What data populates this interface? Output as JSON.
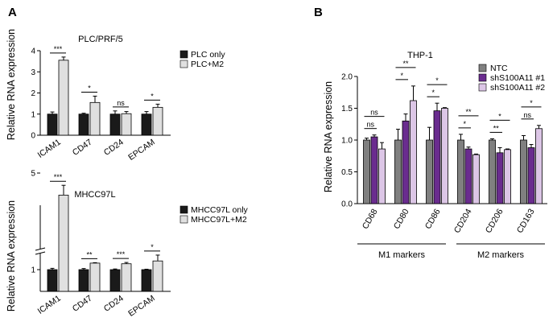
{
  "panels": [
    {
      "letter": "A",
      "title": "PLC/PRF/5",
      "ylabel": "Relative RNA expression",
      "categories": [
        "ICAM1",
        "CD47",
        "CD24",
        "EPCAM"
      ],
      "ylim": [
        0,
        4
      ],
      "yticks": [
        0,
        1,
        2,
        3,
        4
      ],
      "legend": [
        "PLC only",
        "PLC+M2"
      ],
      "colors": [
        "#1a1a1a",
        "#e0e0e0"
      ],
      "significance": [
        "***",
        "*",
        "ns",
        "*"
      ]
    },
    {
      "title": "MHCC97L",
      "ylabel": "Relative RNA expression",
      "categories": [
        "ICAM1",
        "CD47",
        "CD24",
        "EPCAM"
      ],
      "ylim": [
        0,
        5
      ],
      "yticks": [
        1,
        5
      ],
      "axis_break": true,
      "legend": [
        "MHCC97L only",
        "MHCC97L+M2"
      ],
      "colors": [
        "#1a1a1a",
        "#e0e0e0"
      ],
      "significance": [
        "***",
        "**",
        "***",
        "*"
      ]
    },
    {
      "letter": "B",
      "title": "THP-1",
      "ylabel": "Relative RNA expression",
      "categories": [
        "CD68",
        "CD80",
        "CD86",
        "CD204",
        "CD206",
        "CD163"
      ],
      "ylim": [
        0,
        2.0
      ],
      "yticks": [
        "0.0",
        "0.5",
        "1.0",
        "1.5",
        "2.0"
      ],
      "legend": [
        "NTC",
        "shS100A11 #1",
        "shS100A11 #2"
      ],
      "colors": [
        "#808080",
        "#6a2c8f",
        "#dcc6e6"
      ],
      "significance_upper": [
        "ns",
        "**",
        "*",
        "**",
        "*",
        "*"
      ],
      "significance_lower": [
        "ns",
        "*",
        "*",
        "*",
        "**",
        "ns"
      ],
      "groups": [
        "M1 markers",
        "M2 markers"
      ]
    }
  ],
  "chart_data": [
    {
      "type": "bar",
      "title": "PLC/PRF/5",
      "xlabel": "",
      "ylabel": "Relative RNA expression",
      "ylim": [
        0,
        4
      ],
      "categories": [
        "ICAM1",
        "CD47",
        "CD24",
        "EPCAM"
      ],
      "series": [
        {
          "name": "PLC only",
          "values": [
            1.0,
            1.0,
            1.0,
            1.0
          ],
          "errors": [
            0.1,
            0.04,
            0.15,
            0.12
          ]
        },
        {
          "name": "PLC+M2",
          "values": [
            3.55,
            1.55,
            1.02,
            1.32
          ],
          "errors": [
            0.15,
            0.3,
            0.1,
            0.15
          ]
        }
      ]
    },
    {
      "type": "bar",
      "title": "MHCC97L",
      "xlabel": "",
      "ylabel": "Relative RNA expression",
      "ylim": [
        0,
        5
      ],
      "categories": [
        "ICAM1",
        "CD47",
        "CD24",
        "EPCAM"
      ],
      "series": [
        {
          "name": "MHCC97L only",
          "values": [
            1.0,
            1.0,
            1.0,
            1.0
          ],
          "errors": [
            0.06,
            0.05,
            0.03,
            0.02
          ]
        },
        {
          "name": "MHCC97L+M2",
          "values": [
            4.1,
            1.3,
            1.27,
            1.4
          ],
          "errors": [
            0.4,
            0.02,
            0.06,
            0.25
          ]
        }
      ]
    },
    {
      "type": "bar",
      "title": "THP-1",
      "xlabel": "",
      "ylabel": "Relative RNA expression",
      "ylim": [
        0,
        2.0
      ],
      "categories": [
        "CD68",
        "CD80",
        "CD86",
        "CD204",
        "CD206",
        "CD163"
      ],
      "series": [
        {
          "name": "NTC",
          "values": [
            1.0,
            1.0,
            1.0,
            1.0,
            1.0,
            1.0
          ],
          "errors": [
            0.03,
            0.17,
            0.2,
            0.09,
            0.02,
            0.07
          ]
        },
        {
          "name": "shS100A11 #1",
          "values": [
            1.05,
            1.3,
            1.46,
            0.86,
            0.8,
            0.88
          ],
          "errors": [
            0.03,
            0.11,
            0.12,
            0.03,
            0.08,
            0.05
          ]
        },
        {
          "name": "shS100A11 #2",
          "values": [
            0.86,
            1.62,
            1.5,
            0.77,
            0.85,
            1.18
          ],
          "errors": [
            0.1,
            0.23,
            0.01,
            0.01,
            0.01,
            0.05
          ]
        }
      ]
    }
  ]
}
